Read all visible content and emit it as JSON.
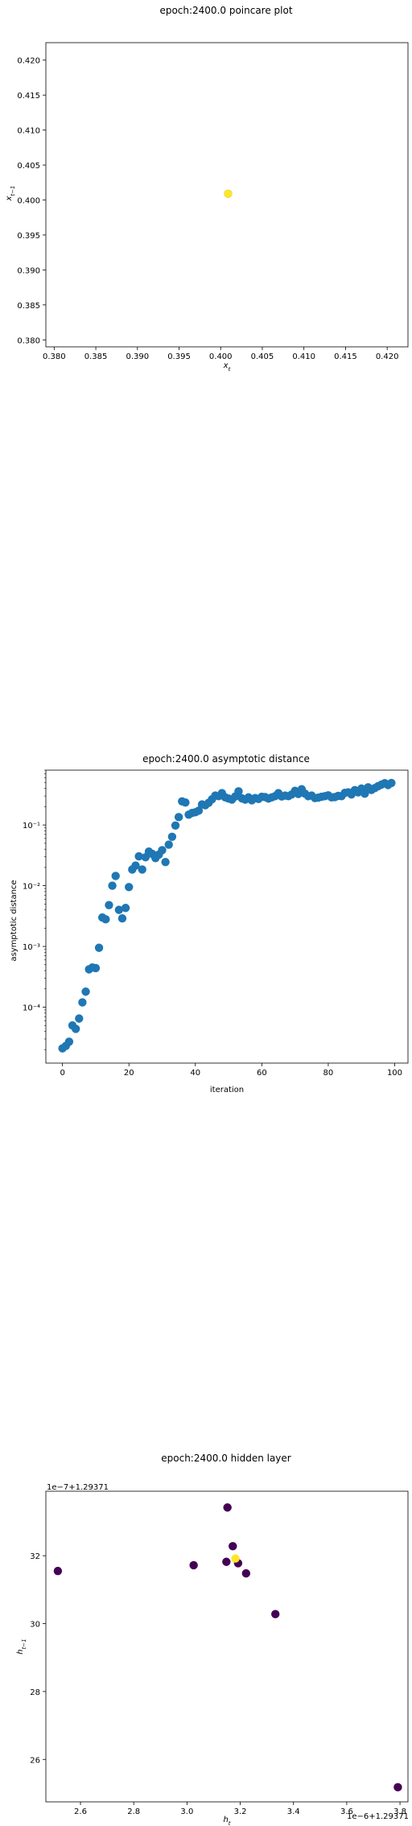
{
  "chart_data": [
    {
      "id": "poincare",
      "type": "scatter",
      "title": "epoch:2400.0 poincare plot",
      "xlabel": "x_t",
      "ylabel": "x_{t-1}",
      "xlim": [
        0.379,
        0.4225
      ],
      "ylim": [
        0.379,
        0.4225
      ],
      "xticks": [
        0.38,
        0.385,
        0.39,
        0.395,
        0.4,
        0.405,
        0.41,
        0.415,
        0.42
      ],
      "yticks": [
        0.38,
        0.385,
        0.39,
        0.395,
        0.4,
        0.405,
        0.41,
        0.415,
        0.42
      ],
      "xtick_labels": [
        "0.380",
        "0.385",
        "0.390",
        "0.395",
        "0.400",
        "0.405",
        "0.410",
        "0.415",
        "0.420"
      ],
      "ytick_labels": [
        "0.380",
        "0.385",
        "0.390",
        "0.395",
        "0.400",
        "0.405",
        "0.410",
        "0.415",
        "0.420"
      ],
      "points": [
        {
          "x": 0.4009,
          "y": 0.4009,
          "color": "#440154"
        },
        {
          "x": 0.4009,
          "y": 0.4009,
          "color": "#fde725"
        }
      ]
    },
    {
      "id": "asymptotic",
      "type": "scatter",
      "title": "epoch:2400.0 asymptotic distance",
      "xlabel": "iteration",
      "ylabel": "asymptotic distance",
      "yscale": "log",
      "xlim": [
        -5,
        104
      ],
      "ylim": [
        1.2e-05,
        0.8
      ],
      "xticks": [
        0,
        20,
        40,
        60,
        80,
        100
      ],
      "xtick_labels": [
        "0",
        "20",
        "40",
        "60",
        "80",
        "100"
      ],
      "yticks": [
        0.0001,
        0.001,
        0.01,
        0.1
      ],
      "ytick_labels": [
        "10⁻⁴",
        "10⁻³",
        "10⁻²",
        "10⁻¹"
      ],
      "color": "#1f77b4",
      "values": [
        2.1e-05,
        2.3e-05,
        2.7e-05,
        5e-05,
        4.4e-05,
        6.5e-05,
        0.00012,
        0.00018,
        0.00042,
        0.00045,
        0.00044,
        0.00095,
        0.003,
        0.0028,
        0.0048,
        0.01,
        0.0145,
        0.004,
        0.0029,
        0.0043,
        0.0095,
        0.0185,
        0.0215,
        0.0305,
        0.0185,
        0.0295,
        0.0365,
        0.0335,
        0.0285,
        0.0325,
        0.0385,
        0.0245,
        0.0475,
        0.064,
        0.098,
        0.135,
        0.245,
        0.235,
        0.148,
        0.158,
        0.162,
        0.172,
        0.218,
        0.212,
        0.232,
        0.265,
        0.305,
        0.298,
        0.335,
        0.285,
        0.272,
        0.262,
        0.295,
        0.358,
        0.275,
        0.262,
        0.285,
        0.255,
        0.278,
        0.268,
        0.292,
        0.288,
        0.272,
        0.285,
        0.298,
        0.335,
        0.295,
        0.305,
        0.298,
        0.318,
        0.365,
        0.325,
        0.388,
        0.328,
        0.298,
        0.305,
        0.278,
        0.282,
        0.292,
        0.298,
        0.308,
        0.285,
        0.288,
        0.302,
        0.298,
        0.338,
        0.345,
        0.318,
        0.375,
        0.345,
        0.398,
        0.328,
        0.418,
        0.378,
        0.405,
        0.435,
        0.462,
        0.488,
        0.455,
        0.492
      ]
    },
    {
      "id": "hidden",
      "type": "scatter",
      "title": "epoch:2400.0 hidden layer",
      "xlabel": "h_t",
      "ylabel": "h_{t-1}",
      "x_offset_label": "1e−6+1.29371",
      "y_offset_label": "1e−7+1.29371",
      "xlim": [
        2.47,
        3.83
      ],
      "ylim": [
        24.75,
        33.9
      ],
      "xticks": [
        2.6,
        2.8,
        3.0,
        3.2,
        3.4,
        3.6,
        3.8
      ],
      "xtick_labels": [
        "2.6",
        "2.8",
        "3.0",
        "3.2",
        "3.4",
        "3.6",
        "3.8"
      ],
      "yticks": [
        26,
        28,
        30,
        32
      ],
      "ytick_labels": [
        "26",
        "28",
        "30",
        "32"
      ],
      "points": [
        {
          "x": 3.152,
          "y": 33.42,
          "color": "#440154"
        },
        {
          "x": 3.172,
          "y": 32.28,
          "color": "#440154"
        },
        {
          "x": 3.025,
          "y": 31.72,
          "color": "#440154"
        },
        {
          "x": 3.148,
          "y": 31.82,
          "color": "#440154"
        },
        {
          "x": 3.192,
          "y": 31.78,
          "color": "#440154"
        },
        {
          "x": 3.222,
          "y": 31.48,
          "color": "#440154"
        },
        {
          "x": 3.332,
          "y": 30.28,
          "color": "#440154"
        },
        {
          "x": 2.515,
          "y": 31.55,
          "color": "#440154"
        },
        {
          "x": 3.792,
          "y": 25.18,
          "color": "#440154"
        },
        {
          "x": 3.182,
          "y": 31.92,
          "color": "#fde725"
        }
      ]
    }
  ]
}
